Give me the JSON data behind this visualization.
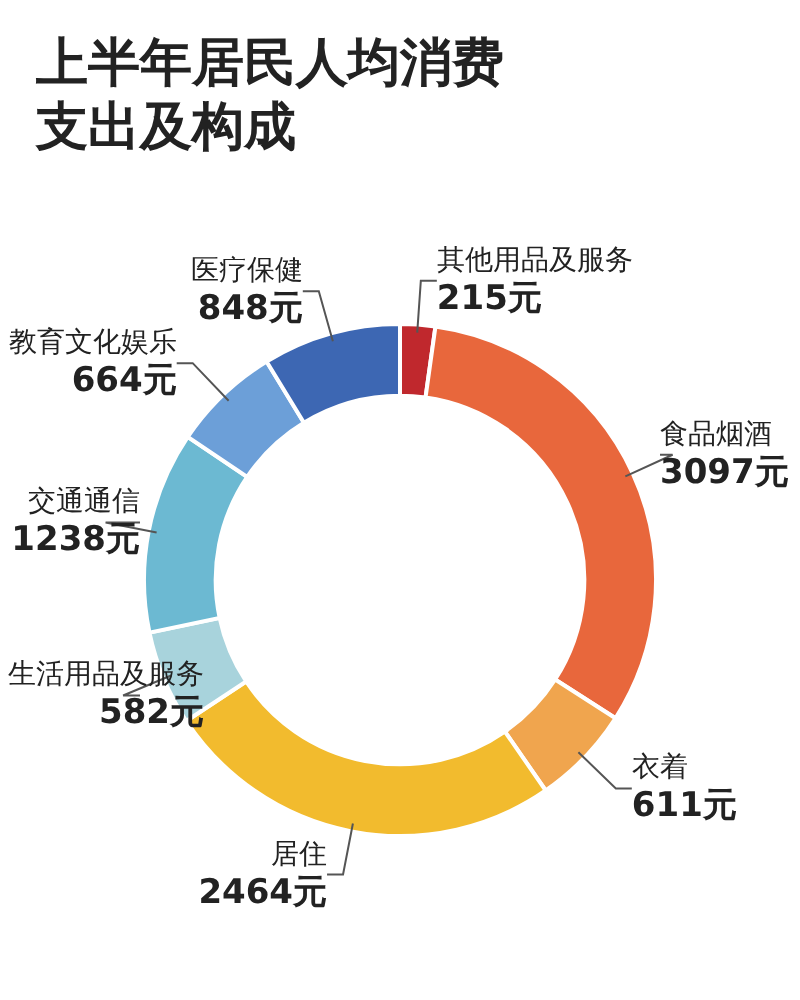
{
  "chart_data": {
    "type": "donut",
    "title": "上半年居民人均消费支出及构成",
    "categories": [
      "其他用品及服务",
      "食品烟酒",
      "衣着",
      "居住",
      "生活用品及服务",
      "交通通信",
      "教育文化娱乐",
      "医疗保健"
    ],
    "values": [
      215,
      3097,
      611,
      2464,
      582,
      1238,
      664,
      848
    ],
    "value_labels": [
      "215元",
      "3097元",
      "611元",
      "2464元",
      "582元",
      "1238元",
      "664元",
      "848元"
    ],
    "colors": [
      "#c0282d",
      "#e8673c",
      "#f0a54e",
      "#f2bb2e",
      "#a8d3dc",
      "#6cb9d2",
      "#6c9fd8",
      "#3d67b3"
    ],
    "legend": false
  }
}
